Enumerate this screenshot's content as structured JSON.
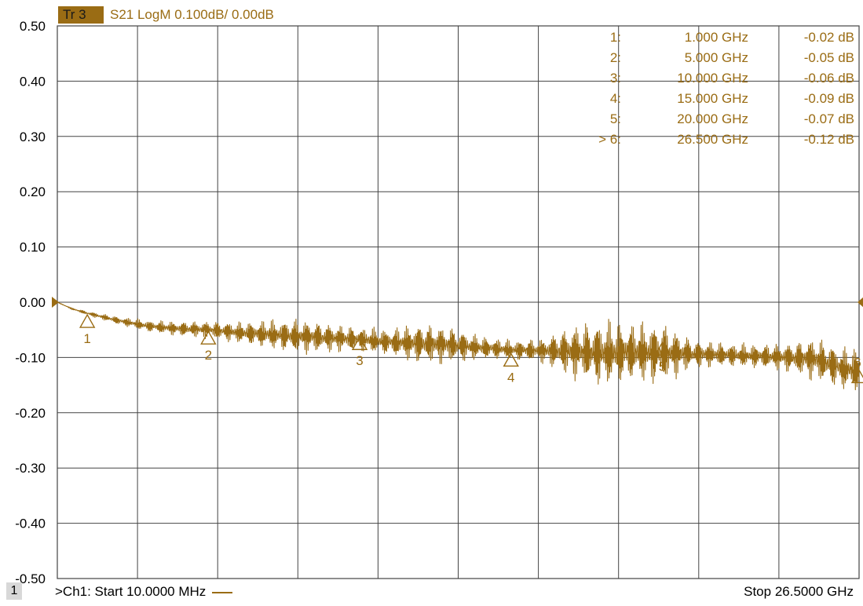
{
  "trace": {
    "tag": "Tr 3",
    "description": "S21 LogM 0.100dB/  0.00dB",
    "color": "#9a6c14"
  },
  "footer": {
    "channel_number": "1",
    "start_label": ">Ch1: Start  10.0000 MHz",
    "stop_label": "Stop  26.5000 GHz"
  },
  "chart_data": {
    "type": "line",
    "title": "",
    "xlabel": "",
    "ylabel": "",
    "x_unit": "GHz",
    "xlim": [
      0.01,
      26.5
    ],
    "ylim": [
      -0.5,
      0.5
    ],
    "y_tick_labels": [
      "0.50",
      "0.40",
      "0.30",
      "0.20",
      "0.10",
      "0.00",
      "-0.10",
      "-0.20",
      "-0.30",
      "-0.40",
      "-0.50"
    ],
    "grid": true,
    "reference_level_db": 0.0,
    "series": [
      {
        "color": "#9a6c14",
        "x": [
          0.01,
          0.5,
          1,
          2,
          3,
          4,
          5,
          6,
          7,
          8,
          9,
          10,
          11,
          12,
          13,
          14,
          15,
          16,
          17,
          18,
          19,
          20,
          21,
          22,
          23,
          24,
          25,
          26,
          26.5
        ],
        "y": [
          0.0,
          -0.012,
          -0.02,
          -0.033,
          -0.043,
          -0.048,
          -0.05,
          -0.055,
          -0.058,
          -0.062,
          -0.065,
          -0.067,
          -0.072,
          -0.075,
          -0.078,
          -0.082,
          -0.086,
          -0.088,
          -0.09,
          -0.092,
          -0.09,
          -0.093,
          -0.094,
          -0.095,
          -0.097,
          -0.1,
          -0.103,
          -0.12,
          -0.125
        ],
        "ripple_envelope_db": [
          0.0,
          0.002,
          0.004,
          0.008,
          0.012,
          0.015,
          0.018,
          0.022,
          0.03,
          0.036,
          0.03,
          0.025,
          0.028,
          0.042,
          0.038,
          0.024,
          0.02,
          0.025,
          0.055,
          0.07,
          0.062,
          0.065,
          0.03,
          0.025,
          0.025,
          0.028,
          0.045,
          0.045,
          0.045
        ]
      }
    ],
    "markers": [
      {
        "id": "1",
        "label": "1:",
        "freq_label": "1.000 GHz",
        "value_label": "-0.02 dB",
        "x": 1.0,
        "y": -0.02,
        "active": false
      },
      {
        "id": "2",
        "label": "2:",
        "freq_label": "5.000 GHz",
        "value_label": "-0.05 dB",
        "x": 5.0,
        "y": -0.05,
        "active": false
      },
      {
        "id": "3",
        "label": "3:",
        "freq_label": "10.000 GHz",
        "value_label": "-0.06 dB",
        "x": 10.0,
        "y": -0.06,
        "active": false
      },
      {
        "id": "4",
        "label": "4:",
        "freq_label": "15.000 GHz",
        "value_label": "-0.09 dB",
        "x": 15.0,
        "y": -0.09,
        "active": false
      },
      {
        "id": "5",
        "label": "5:",
        "freq_label": "20.000 GHz",
        "value_label": "-0.07 dB",
        "x": 20.0,
        "y": -0.07,
        "active": false
      },
      {
        "id": "6",
        "label": "> 6:",
        "freq_label": "26.500 GHz",
        "value_label": "-0.12 dB",
        "x": 26.5,
        "y": -0.12,
        "active": true
      }
    ]
  }
}
